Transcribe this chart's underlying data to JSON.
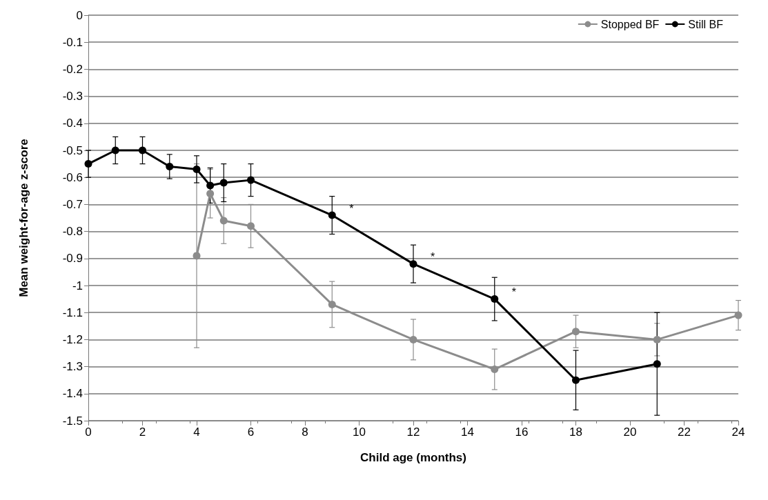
{
  "chart_data": {
    "type": "line",
    "xlabel": "Child age (months)",
    "ylabel": "Mean weight-for-age z-score",
    "xlim": [
      0,
      24
    ],
    "xticks": [
      0,
      2,
      4,
      6,
      8,
      10,
      12,
      14,
      16,
      18,
      20,
      22,
      24
    ],
    "ylim": [
      -1.5,
      0
    ],
    "yticks": [
      -1.5,
      -1.4,
      -1.3,
      -1.2,
      -1.1,
      -1,
      -0.9,
      -0.8,
      -0.7,
      -0.6,
      -0.5,
      -0.4,
      -0.3,
      -0.2,
      -0.1,
      0
    ],
    "grid": "y",
    "legend": "top right",
    "marker": "circle",
    "line_style": "solid",
    "series": [
      {
        "name": "Stopped BF",
        "color": "#8c8c8c",
        "x": [
          4,
          4.5,
          5,
          6,
          9,
          12,
          15,
          18,
          21,
          24
        ],
        "values": [
          -0.89,
          -0.66,
          -0.76,
          -0.78,
          -1.07,
          -1.2,
          -1.31,
          -1.17,
          -1.2,
          -1.11
        ],
        "errors": [
          0.34,
          0.09,
          0.085,
          0.08,
          0.085,
          0.075,
          0.075,
          0.06,
          0.06,
          0.055
        ]
      },
      {
        "name": "Still BF",
        "color": "#000000",
        "x": [
          0,
          1,
          2,
          3,
          4,
          4.5,
          5,
          6,
          9,
          12,
          15,
          18,
          21
        ],
        "values": [
          -0.55,
          -0.5,
          -0.5,
          -0.56,
          -0.57,
          -0.63,
          -0.62,
          -0.61,
          -0.74,
          -0.92,
          -1.05,
          -1.35,
          -1.29
        ],
        "errors": [
          0.05,
          0.05,
          0.05,
          0.045,
          0.05,
          0.065,
          0.07,
          0.06,
          0.07,
          0.07,
          0.08,
          0.11,
          0.19
        ]
      }
    ],
    "annotations": [
      {
        "text": "*",
        "x": 9,
        "y": -0.74
      },
      {
        "text": "*",
        "x": 12,
        "y": -0.92
      },
      {
        "text": "*",
        "x": 15,
        "y": -1.05
      }
    ]
  }
}
